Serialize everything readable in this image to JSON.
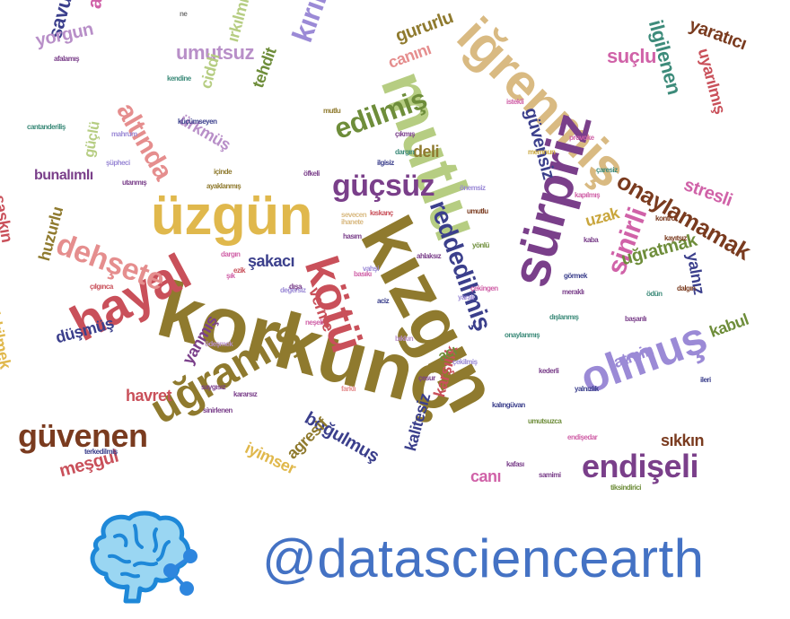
{
  "handle": "@datasciencearth",
  "logo": {
    "icon": "brain-network-icon",
    "brain_color": "#9ad6f2",
    "brain_outline": "#1e88d8",
    "node_color": "#2e86de"
  },
  "palette": {
    "red": "#c9505a",
    "gold": "#c9a63d",
    "olive": "#8f7a2e",
    "yellow": "#e0b84c",
    "blue": "#3b3f8c",
    "lavender": "#9b8ad6",
    "pink": "#d062a8",
    "green": "#6e8d3a",
    "lightgreen": "#b6cd82",
    "brown": "#7a3b1f",
    "teal": "#3d8b7a",
    "salmon": "#e58e8e",
    "tan": "#d9ba82",
    "purple": "#7a3f8a",
    "mauve": "#b88fc8",
    "grey": "#777777"
  },
  "words": [
    {
      "t": "korkunç",
      "c": "olive"
    },
    {
      "t": "kızgın",
      "c": "olive"
    },
    {
      "t": "mutlu",
      "c": "lightgreen"
    },
    {
      "t": "iğrenmiş",
      "c": "tan"
    },
    {
      "t": "üzgün",
      "c": "yellow"
    },
    {
      "t": "sürpriz",
      "c": "purple"
    },
    {
      "t": "kötü",
      "c": "red"
    },
    {
      "t": "hayal",
      "c": "red"
    },
    {
      "t": "olmuş",
      "c": "lavender"
    },
    {
      "t": "uğramış",
      "c": "olive"
    },
    {
      "t": "endişeli",
      "c": "purple"
    },
    {
      "t": "güvenen",
      "c": "brown"
    },
    {
      "t": "dehşete",
      "c": "salmon"
    },
    {
      "t": "güçsüz",
      "c": "purple"
    },
    {
      "t": "kırıklığına",
      "c": "lavender"
    },
    {
      "t": "edilmiş",
      "c": "green"
    },
    {
      "t": "altında",
      "c": "salmon"
    },
    {
      "t": "reddedilmiş",
      "c": "blue"
    },
    {
      "t": "sinirli",
      "c": "pink"
    },
    {
      "t": "onaylamamak",
      "c": "brown"
    },
    {
      "t": "ilgilenen",
      "c": "teal"
    },
    {
      "t": "savunmasız",
      "c": "blue"
    },
    {
      "t": "aşağılanmış",
      "c": "pink"
    },
    {
      "t": "umutsuz",
      "c": "mauve"
    },
    {
      "t": "yorgun",
      "c": "mauve"
    },
    {
      "t": "gururlu",
      "c": "olive"
    },
    {
      "t": "canını",
      "c": "salmon"
    },
    {
      "t": "suçlu",
      "c": "pink"
    },
    {
      "t": "yaratıcı",
      "c": "brown"
    },
    {
      "t": "uyarılmış",
      "c": "red"
    },
    {
      "t": "güvensiz",
      "c": "blue"
    },
    {
      "t": "stresli",
      "c": "pink"
    },
    {
      "t": "uzak",
      "c": "gold"
    },
    {
      "t": "uğratmak",
      "c": "green"
    },
    {
      "t": "yalnız",
      "c": "blue"
    },
    {
      "t": "kabul",
      "c": "green"
    },
    {
      "t": "tatmin",
      "c": "lavender"
    },
    {
      "t": "sıkkın",
      "c": "brown"
    },
    {
      "t": "karşılık",
      "c": "red"
    },
    {
      "t": "canı",
      "c": "pink"
    },
    {
      "t": "kalitesiz",
      "c": "blue"
    },
    {
      "t": "acı",
      "c": "green"
    },
    {
      "t": "boğulmuş",
      "c": "blue"
    },
    {
      "t": "agresif",
      "c": "olive"
    },
    {
      "t": "iyimser",
      "c": "yellow"
    },
    {
      "t": "meşgul",
      "c": "red"
    },
    {
      "t": "yanmış",
      "c": "purple"
    },
    {
      "t": "havret",
      "c": "red"
    },
    {
      "t": "düşmüş",
      "c": "blue"
    },
    {
      "t": "huzurlu",
      "c": "olive"
    },
    {
      "t": "irkilmek",
      "c": "yellow"
    },
    {
      "t": "şaşkın",
      "c": "red"
    },
    {
      "t": "bunalımlı",
      "c": "purple"
    },
    {
      "t": "güçlü",
      "c": "lightgreen"
    },
    {
      "t": "ürkmüş",
      "c": "mauve"
    },
    {
      "t": "ciddi",
      "c": "lightgreen"
    },
    {
      "t": "tehdit",
      "c": "green"
    },
    {
      "t": "deli",
      "c": "olive"
    },
    {
      "t": "şakacı",
      "c": "blue"
    },
    {
      "t": "verme",
      "c": "red"
    },
    {
      "t": "ırkılmış",
      "c": "lightgreen"
    },
    {
      "t": "mahrum",
      "c": "lavender"
    },
    {
      "t": "şüpheci",
      "c": "lavender"
    },
    {
      "t": "içinde",
      "c": "olive"
    },
    {
      "t": "utanmış",
      "c": "purple"
    },
    {
      "t": "ayaklanmış",
      "c": "olive"
    },
    {
      "t": "öfkeli",
      "c": "purple"
    },
    {
      "t": "kıskanç",
      "c": "red"
    },
    {
      "t": "umutlu",
      "c": "brown"
    },
    {
      "t": "önemsiz",
      "c": "lavender"
    },
    {
      "t": "provoke",
      "c": "pink"
    },
    {
      "t": "çaresiz",
      "c": "teal"
    },
    {
      "t": "kapılmış",
      "c": "pink"
    },
    {
      "t": "kontrol",
      "c": "brown"
    },
    {
      "t": "kayıtsız",
      "c": "brown"
    },
    {
      "t": "başarılı",
      "c": "purple"
    },
    {
      "t": "meraklı",
      "c": "purple"
    },
    {
      "t": "dışlanmış",
      "c": "teal"
    },
    {
      "t": "görmek",
      "c": "blue"
    },
    {
      "t": "istekli",
      "c": "pink"
    },
    {
      "t": "saygısız",
      "c": "purple"
    },
    {
      "t": "sinirlenen",
      "c": "purple"
    },
    {
      "t": "terkedilmiş",
      "c": "blue"
    },
    {
      "t": "kararsız",
      "c": "purple"
    },
    {
      "t": "çekilmiş",
      "c": "lavender"
    },
    {
      "t": "çesur",
      "c": "purple"
    },
    {
      "t": "çıkmış",
      "c": "purple"
    },
    {
      "t": "basıkı",
      "c": "pink"
    },
    {
      "t": "değersiz",
      "c": "lavender"
    },
    {
      "t": "sevecen",
      "c": "tan"
    },
    {
      "t": "ihanete",
      "c": "tan"
    },
    {
      "t": "hasım",
      "c": "purple"
    },
    {
      "t": "afalamış",
      "c": "purple"
    },
    {
      "t": "kendine",
      "c": "teal"
    },
    {
      "t": "küçümseyen",
      "c": "blue"
    },
    {
      "t": "cantanderiliş",
      "c": "teal"
    },
    {
      "t": "ezik",
      "c": "red"
    },
    {
      "t": "ilgisiz",
      "c": "blue"
    },
    {
      "t": "dargın",
      "c": "teal"
    },
    {
      "t": "yönlü",
      "c": "green"
    },
    {
      "t": "tiksindirici",
      "c": "green"
    },
    {
      "t": "umutsuzca",
      "c": "green"
    },
    {
      "t": "kafası",
      "c": "purple"
    },
    {
      "t": "samimi",
      "c": "purple"
    },
    {
      "t": "endişedar",
      "c": "pink"
    },
    {
      "t": "kalıngüvan",
      "c": "blue"
    },
    {
      "t": "ne",
      "c": "grey"
    },
    {
      "t": "dışa",
      "c": "purple"
    },
    {
      "t": "şık",
      "c": "pink"
    },
    {
      "t": "neşeli",
      "c": "pink"
    },
    {
      "t": "mutlu",
      "c": "olive"
    },
    {
      "t": "çılgınca",
      "c": "red"
    },
    {
      "t": "farklı",
      "c": "salmon"
    },
    {
      "t": "dargın",
      "c": "pink"
    },
    {
      "t": "vahşi",
      "c": "lavender"
    },
    {
      "t": "kaba",
      "c": "purple"
    },
    {
      "t": "ödün",
      "c": "teal"
    },
    {
      "t": "dalgın",
      "c": "brown"
    },
    {
      "t": "ödeşmek",
      "c": "mauve"
    },
    {
      "t": "aciz",
      "c": "blue"
    },
    {
      "t": "ahlaksız",
      "c": "purple"
    },
    {
      "t": "yaralı",
      "c": "lavender"
    },
    {
      "t": "onaylanmış",
      "c": "teal"
    },
    {
      "t": "memnun",
      "c": "gold"
    },
    {
      "t": "çekingen",
      "c": "pink"
    },
    {
      "t": "bıkkın",
      "c": "mauve"
    },
    {
      "t": "kederli",
      "c": "purple"
    },
    {
      "t": "yalnızlık",
      "c": "blue"
    },
    {
      "t": "ileri",
      "c": "blue"
    }
  ]
}
